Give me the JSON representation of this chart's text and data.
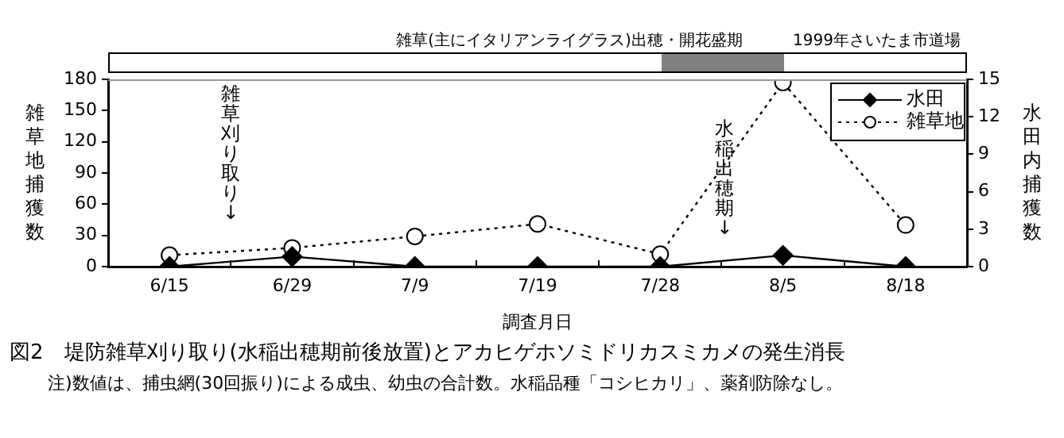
{
  "chart_data": {
    "type": "line",
    "title": "図2　堤防雑草刈り取り(水稲出穂期前後放置)とアカヒゲホソミドリカスミカメの発生消長",
    "xlabel": "調査月日",
    "ylabel": "雑草地捕獲数",
    "y2label": "水田内捕獲数",
    "categories": [
      "6/15",
      "6/29",
      "7/9",
      "7/19",
      "7/28",
      "8/5",
      "8/18"
    ],
    "series": [
      {
        "name": "水田",
        "color": "#000000",
        "axis": "y2",
        "marker": "diamond",
        "line_style": "solid",
        "values": [
          0,
          0.8,
          0,
          0,
          0,
          0.9,
          0
        ]
      },
      {
        "name": "雑草地",
        "color": "#000000",
        "marker": "circle",
        "line_style": "dotted",
        "values": [
          11,
          18,
          29,
          41,
          12,
          177,
          40
        ]
      }
    ],
    "ylim": [
      0,
      180
    ],
    "yticks": [
      0,
      30,
      60,
      90,
      120,
      150,
      180
    ],
    "y2lim": [
      0,
      15
    ],
    "y2ticks": [
      0,
      3,
      6,
      9,
      12,
      15
    ],
    "annotations": [
      "雑草刈り取り↓",
      "水稲出穂期↓",
      "雑草(主にイタリアンライグラス)出穂・開花盛期",
      "1999年さいたま市道場",
      "注)数値は、捕虫網(30回振り)による成虫、幼虫の合計数。水稲品種「コシヒカリ」、薬剤防除なし。"
    ],
    "grid": false,
    "legend": "top right"
  }
}
